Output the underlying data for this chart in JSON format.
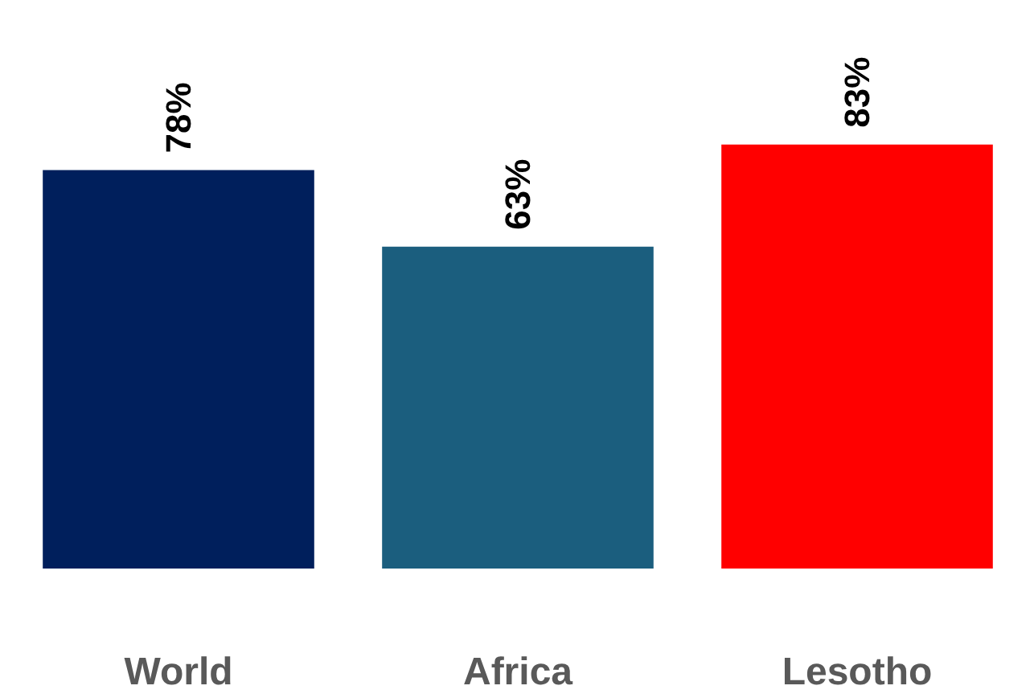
{
  "chart_data": {
    "type": "bar",
    "categories": [
      "World",
      "Africa",
      "Lesotho"
    ],
    "values": [
      78,
      63,
      83
    ],
    "colors": [
      "#001f5c",
      "#1b5e7e",
      "#ff0000"
    ],
    "value_labels": [
      "78%",
      "63%",
      "83%"
    ],
    "grid": false,
    "tick_labels": "x"
  }
}
